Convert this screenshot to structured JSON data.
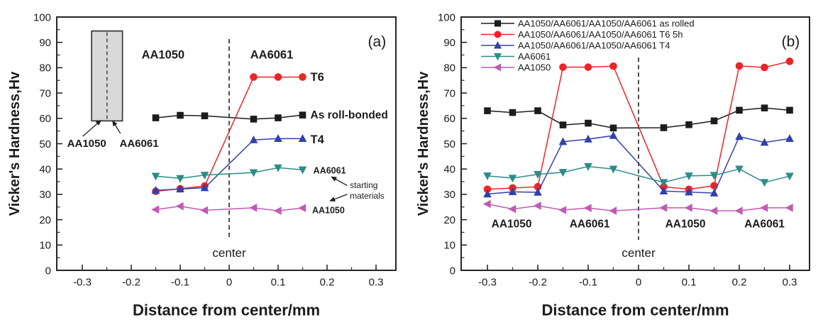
{
  "figure": {
    "background": "#ffffff",
    "text_color": "#1c1c1c",
    "frame_color": "#262626"
  },
  "chart_data": [
    {
      "type": "line",
      "panel_label": "(a)",
      "xlabel": "Distance from center/mm",
      "ylabel": "Vicker's Hardness,Hv",
      "ylim": [
        0,
        100
      ],
      "y_ticks": {
        "values": [
          0,
          10,
          20,
          30,
          40,
          50,
          60,
          70,
          80,
          90,
          100
        ],
        "labels": [
          "0",
          "10",
          "20",
          "30",
          "40",
          "50",
          "60",
          "70",
          "80",
          "90",
          "100"
        ]
      },
      "y_minor_ticks": [
        5,
        15,
        25,
        35,
        45,
        55,
        65,
        75,
        85,
        95
      ],
      "x_ticks": {
        "values": [
          -0.3,
          -0.2,
          -0.1,
          0,
          0.1,
          0.2,
          0.3
        ],
        "labels": [
          "-0.3",
          "-0.2",
          "-0.1",
          "0",
          "0.1",
          "0.2",
          "0.3"
        ]
      },
      "x_minor_ticks": [
        -0.25,
        -0.15,
        -0.05,
        0.05,
        0.15,
        0.25
      ],
      "grid": false,
      "x": [
        -0.15,
        -0.1,
        -0.05,
        0.05,
        0.1,
        0.15
      ],
      "series": [
        {
          "name": "As roll-bonded",
          "marker": "square",
          "color": "#1c1c1c",
          "values": [
            60.2,
            61.2,
            61.0,
            59.7,
            60.2,
            61.3
          ]
        },
        {
          "name": "T6",
          "marker": "circle",
          "color": "#ec2427",
          "values": [
            31.2,
            32.2,
            33.3,
            76.3,
            76.3,
            76.3
          ]
        },
        {
          "name": "T4",
          "marker": "triangle-up",
          "color": "#3240ab",
          "values": [
            31.6,
            32.1,
            32.6,
            51.5,
            52.0,
            52.0
          ]
        },
        {
          "name": "AA6061",
          "marker": "triangle-down",
          "color": "#2b8c88",
          "values": [
            37.2,
            36.3,
            37.6,
            38.6,
            40.5,
            39.7
          ]
        },
        {
          "name": "AA1050",
          "marker": "triangle-left",
          "color": "#c05ab2",
          "values": [
            24.0,
            25.3,
            23.7,
            24.7,
            23.5,
            24.6
          ]
        }
      ],
      "center_line": {
        "x": 0,
        "y_range": [
          12.9,
          91.3
        ],
        "label": "center",
        "label_y": 7.0,
        "label_size": 17
      },
      "annotations": [
        {
          "text": "AA1050",
          "x": -0.135,
          "y": 85.2,
          "size": 16.5,
          "bold": true,
          "anchor": "middle"
        },
        {
          "text": "AA6061",
          "x": 0.087,
          "y": 85.2,
          "size": 16.5,
          "bold": true,
          "anchor": "middle"
        },
        {
          "text": "T6",
          "x": 0.166,
          "y": 76.4,
          "size": 16.5,
          "bold": true,
          "anchor": "start"
        },
        {
          "text": "As roll-bonded",
          "x": 0.166,
          "y": 61.5,
          "size": 15.5,
          "bold": true,
          "anchor": "start"
        },
        {
          "text": "T4",
          "x": 0.166,
          "y": 51.8,
          "size": 16.5,
          "bold": true,
          "anchor": "start"
        },
        {
          "text": "AA6061",
          "x": 0.172,
          "y": 39.5,
          "size": 12.5,
          "bold": true,
          "anchor": "start"
        },
        {
          "text": "starting",
          "x": 0.2465,
          "y": 33.7,
          "size": 12,
          "bold": false,
          "anchor": "start"
        },
        {
          "text": "materials",
          "x": 0.2465,
          "y": 29.4,
          "size": 12,
          "bold": false,
          "anchor": "start"
        },
        {
          "text": "AA1050",
          "x": 0.1695,
          "y": 23.8,
          "size": 12.5,
          "bold": true,
          "anchor": "start"
        },
        {
          "text": "(a)",
          "x": 0.302,
          "y": 90.5,
          "size": 21,
          "bold": false,
          "anchor": "middle"
        }
      ],
      "arrows": [
        {
          "x1": -0.299,
          "y1": 52.9,
          "x2": -0.262,
          "y2": 59.2
        },
        {
          "x1": -0.222,
          "y1": 54.0,
          "x2": -0.238,
          "y2": 59.0
        },
        {
          "x1": 0.241,
          "y1": 33.5,
          "x2": 0.209,
          "y2": 36.9
        },
        {
          "x1": 0.241,
          "y1": 30.0,
          "x2": 0.206,
          "y2": 27.4
        }
      ],
      "inset": {
        "x0": -0.281,
        "x1": -0.218,
        "y0": 59,
        "y1": 94.5,
        "fill": "#d9d9d9",
        "border": "#2a2a2a",
        "labels": [
          {
            "text": "AA1050",
            "x": -0.291,
            "y": 50.2,
            "size": 15,
            "bold": true,
            "anchor": "middle"
          },
          {
            "text": "AA6061",
            "x": -0.184,
            "y": 50.2,
            "size": 15,
            "bold": true,
            "anchor": "middle"
          }
        ]
      },
      "legend": null
    },
    {
      "type": "line",
      "panel_label": "(b)",
      "xlabel": "Distance from center/mm",
      "ylabel": "Vicker's Hardness,Hv",
      "ylim": [
        0,
        100
      ],
      "y_ticks": {
        "values": [
          0,
          10,
          20,
          30,
          40,
          50,
          60,
          70,
          80,
          90,
          100
        ],
        "labels": [
          "0",
          "10",
          "20",
          "30",
          "40",
          "50",
          "60",
          "70",
          "80",
          "90",
          "100"
        ]
      },
      "y_minor_ticks": [
        5,
        15,
        25,
        35,
        45,
        55,
        65,
        75,
        85,
        95
      ],
      "x_ticks": {
        "values": [
          -0.3,
          -0.2,
          -0.1,
          0,
          0.1,
          0.2,
          0.3
        ],
        "labels": [
          "-0.3",
          "-0.2",
          "-0.1",
          "0",
          "0.1",
          "0.2",
          "0.3"
        ]
      },
      "x_minor_ticks": [
        -0.25,
        -0.15,
        -0.05,
        0.05,
        0.15,
        0.25
      ],
      "grid": false,
      "x": [
        -0.3,
        -0.25,
        -0.2,
        -0.15,
        -0.1,
        -0.05,
        0.05,
        0.1,
        0.15,
        0.2,
        0.25,
        0.3
      ],
      "series": [
        {
          "name": "AA1050/AA6061/AA1050/AA6061 as rolled",
          "marker": "square",
          "color": "#1c1c1c",
          "values": [
            63.0,
            62.3,
            63.0,
            57.4,
            58.1,
            56.2,
            56.3,
            57.5,
            59.0,
            63.2,
            64.1,
            63.2
          ]
        },
        {
          "name": "AA1050/AA6061/AA1050/AA6061 T6 5h",
          "marker": "circle",
          "color": "#ec2427",
          "values": [
            32.0,
            32.5,
            33.0,
            80.2,
            80.2,
            80.6,
            33.0,
            32.0,
            33.4,
            80.7,
            80.1,
            82.5
          ]
        },
        {
          "name": "AA1050/AA6061/AA1050/AA6061 T4",
          "marker": "triangle-up",
          "color": "#3240ab",
          "values": [
            30.1,
            31.0,
            30.8,
            50.8,
            51.8,
            53.2,
            31.3,
            30.9,
            30.5,
            52.8,
            50.5,
            52.0
          ]
        },
        {
          "name": "AA6061",
          "marker": "triangle-down",
          "color": "#2b8c88",
          "values": [
            37.3,
            36.4,
            37.9,
            38.7,
            41.0,
            40.0,
            34.7,
            37.3,
            37.5,
            40.0,
            34.7,
            37.2
          ]
        },
        {
          "name": "AA1050",
          "marker": "triangle-left",
          "color": "#c05ab2",
          "values": [
            26.2,
            24.2,
            25.5,
            23.8,
            24.6,
            23.5,
            24.7,
            24.7,
            23.5,
            23.5,
            24.7,
            24.7
          ]
        }
      ],
      "center_line": {
        "x": 0,
        "y_range": [
          12.0,
          84.0
        ],
        "label": "center",
        "label_y": 7.0,
        "label_size": 17
      },
      "annotations": [
        {
          "text": "AA1050",
          "x": -0.252,
          "y": 18.4,
          "size": 15.5,
          "bold": true,
          "anchor": "middle"
        },
        {
          "text": "AA6061",
          "x": -0.097,
          "y": 18.4,
          "size": 15.5,
          "bold": true,
          "anchor": "middle"
        },
        {
          "text": "AA1050",
          "x": 0.093,
          "y": 18.4,
          "size": 15.5,
          "bold": true,
          "anchor": "middle"
        },
        {
          "text": "AA6061",
          "x": 0.25,
          "y": 18.4,
          "size": 15.5,
          "bold": true,
          "anchor": "middle"
        },
        {
          "text": "(b)",
          "x": 0.302,
          "y": 90.5,
          "size": 21,
          "bold": false,
          "anchor": "middle"
        }
      ],
      "arrows": [],
      "inset": null,
      "legend": {
        "position": "top-left",
        "entries": [
          "AA1050/AA6061/AA1050/AA6061 as rolled",
          "AA1050/AA6061/AA1050/AA6061 T6 5h",
          "AA1050/AA6061/AA1050/AA6061 T4",
          "AA6061",
          "AA1050"
        ]
      }
    }
  ]
}
